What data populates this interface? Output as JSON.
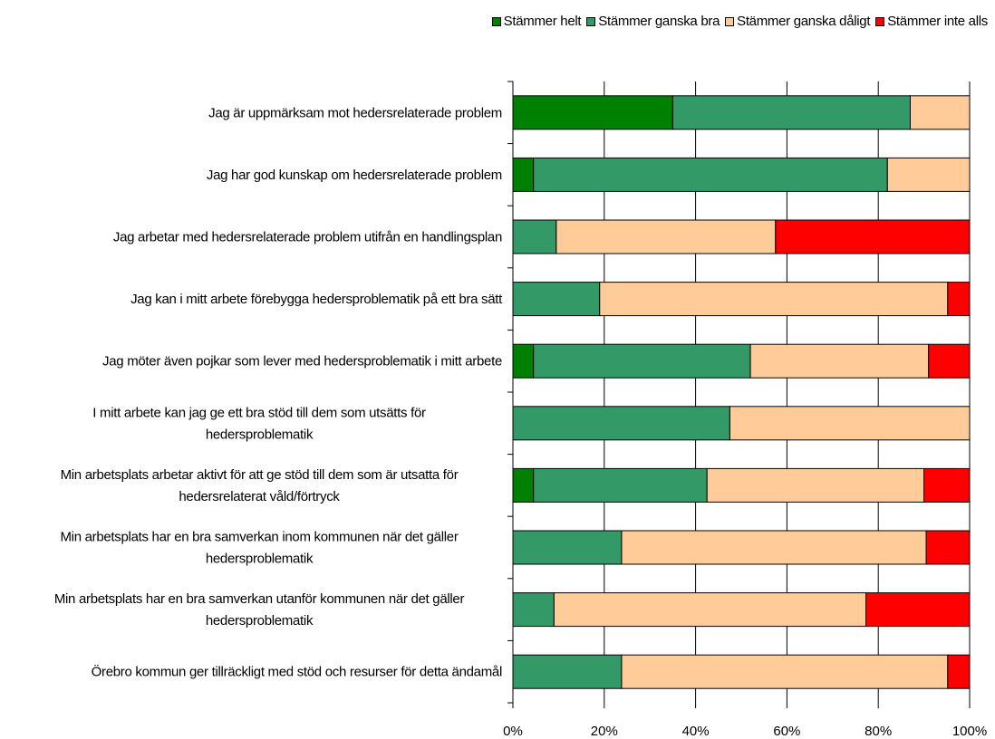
{
  "chart_data": {
    "type": "bar",
    "orientation": "horizontal",
    "stacked": true,
    "percent_stacked": true,
    "categories": [
      "Jag är uppmärksam mot hedersrelaterade problem",
      "Jag har god kunskap om hedersrelaterade problem",
      "Jag arbetar med hedersrelaterade problem utifrån en handlingsplan",
      "Jag kan i mitt arbete förebygga hedersproblematik på ett bra sätt",
      "Jag möter även pojkar som lever med hedersproblematik i mitt arbete",
      "I mitt arbete kan jag ge ett bra stöd till dem som utsätts för hedersproblematik",
      "Min arbetsplats arbetar aktivt för att ge stöd till dem som är utsatta för hedersrelaterat våld/förtryck",
      "Min arbetsplats har en bra samverkan inom kommunen när det gäller hedersproblematik",
      "Min arbetsplats har en bra samverkan utanför kommunen när det gäller hedersproblematik",
      "Örebro kommun ger tillräckligt med stöd och resurser för detta ändamål"
    ],
    "category_lines": [
      [
        "Jag är uppmärksam mot hedersrelaterade problem"
      ],
      [
        "Jag har god kunskap om hedersrelaterade problem"
      ],
      [
        "Jag arbetar med hedersrelaterade problem utifrån en handlingsplan"
      ],
      [
        "Jag kan i mitt arbete förebygga hedersproblematik på ett bra sätt"
      ],
      [
        "Jag möter även pojkar som lever med hedersproblematik i mitt arbete"
      ],
      [
        "I mitt arbete kan jag ge ett bra stöd till dem som utsätts för",
        "hedersproblematik"
      ],
      [
        "Min arbetsplats arbetar aktivt för att ge stöd till dem som är utsatta för",
        "hedersrelaterat våld/förtryck"
      ],
      [
        "Min arbetsplats har en bra samverkan inom kommunen när det gäller",
        "hedersproblematik"
      ],
      [
        "Min arbetsplats har en bra samverkan utanför kommunen när det gäller",
        "hedersproblematik"
      ],
      [
        "Örebro kommun ger tillräckligt med stöd och resurser för detta ändamål"
      ]
    ],
    "series": [
      {
        "name": "Stämmer helt",
        "color": "#008000",
        "values": [
          35,
          4.5,
          0,
          0,
          4.5,
          0,
          4.5,
          0,
          0,
          0
        ]
      },
      {
        "name": "Stämmer ganska bra",
        "color": "#339966",
        "values": [
          52,
          77.5,
          9.5,
          19,
          47.5,
          47.5,
          38,
          23.8,
          9,
          23.8
        ]
      },
      {
        "name": "Stämmer ganska dåligt",
        "color": "#FFCC99",
        "values": [
          13,
          18,
          48,
          76.2,
          39,
          52.5,
          47.5,
          66.7,
          68.3,
          71.4
        ]
      },
      {
        "name": "Stämmer inte alls",
        "color": "#FF0000",
        "values": [
          0,
          0,
          42.5,
          4.8,
          9,
          0,
          10,
          9.5,
          22.7,
          4.8
        ]
      }
    ],
    "xlim": [
      0,
      100
    ],
    "xticks": [
      "0%",
      "20%",
      "40%",
      "60%",
      "80%",
      "100%"
    ],
    "grid": "vertical",
    "legend": "top-right"
  }
}
